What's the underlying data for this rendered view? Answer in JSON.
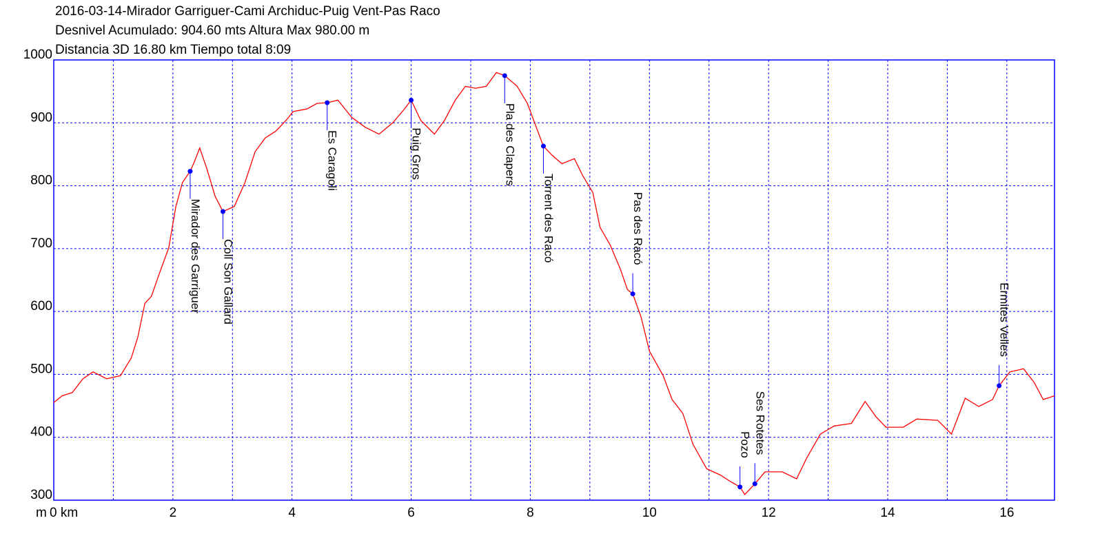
{
  "chart_data": {
    "type": "line",
    "title": "2016-03-14-Mirador Garriguer-Cami Archiduc-Puig Vent-Pas Raco",
    "subtitle": [
      "Desnivel Acumulado: 904.60 mts  Altura Max 980.00 m",
      "Distancia 3D 16.80 km  Tiempo total 8:09"
    ],
    "y_label": "m",
    "xlim": [
      0,
      16.8
    ],
    "ylim": [
      300,
      1000
    ],
    "xticks": [
      {
        "value": 0,
        "label": "0 km"
      },
      2,
      4,
      6,
      8,
      10,
      12,
      14,
      16
    ],
    "x_minor_grid": [
      1,
      3,
      5,
      7,
      9,
      11,
      13,
      15
    ],
    "yticks": [
      300,
      400,
      500,
      600,
      700,
      800,
      900,
      1000
    ],
    "grid": true,
    "axis_color": "#0000ff",
    "series": [
      {
        "color": "#ff0000",
        "x": [
          0,
          0.14,
          0.31,
          0.49,
          0.66,
          0.89,
          1.12,
          1.3,
          1.41,
          1.53,
          1.64,
          1.76,
          1.93,
          2.05,
          2.16,
          2.29,
          2.36,
          2.45,
          2.57,
          2.71,
          2.84,
          3.03,
          3.21,
          3.38,
          3.55,
          3.73,
          3.9,
          4.02,
          4.25,
          4.42,
          4.59,
          4.77,
          5.0,
          5.23,
          5.46,
          5.69,
          5.87,
          6.0,
          6.16,
          6.39,
          6.56,
          6.74,
          6.91,
          7.08,
          7.26,
          7.43,
          7.57,
          7.78,
          7.95,
          8.1,
          8.22,
          8.36,
          8.53,
          8.74,
          8.88,
          9.05,
          9.17,
          9.34,
          9.51,
          9.63,
          9.72,
          9.86,
          10.0,
          10.23,
          10.38,
          10.56,
          10.73,
          10.96,
          11.19,
          11.37,
          11.52,
          11.6,
          11.77,
          11.94,
          12.23,
          12.47,
          12.64,
          12.87,
          13.1,
          13.39,
          13.62,
          13.8,
          13.97,
          14.26,
          14.49,
          14.84,
          15.07,
          15.3,
          15.53,
          15.76,
          15.87,
          16.05,
          16.28,
          16.46,
          16.61,
          16.8
        ],
        "values": [
          455,
          466,
          471,
          493,
          504,
          493,
          498,
          526,
          559,
          613,
          624,
          657,
          701,
          767,
          805,
          823,
          838,
          860,
          827,
          783,
          759,
          767,
          805,
          854,
          876,
          887,
          904,
          918,
          922,
          931,
          932,
          936,
          909,
          893,
          882,
          900,
          920,
          936,
          904,
          882,
          904,
          936,
          958,
          955,
          958,
          980,
          975,
          958,
          931,
          893,
          863,
          849,
          835,
          843,
          816,
          789,
          734,
          706,
          668,
          635,
          628,
          591,
          537,
          498,
          460,
          438,
          389,
          350,
          340,
          329,
          321,
          309,
          326,
          345,
          345,
          334,
          367,
          405,
          418,
          422,
          457,
          433,
          416,
          416,
          429,
          427,
          405,
          462,
          449,
          460,
          482,
          504,
          509,
          487,
          460,
          466
        ]
      }
    ],
    "waypoint_color": "#0000ff",
    "waypoints": [
      {
        "name": "Mirador des Garriguer",
        "x": 2.29,
        "y": 823,
        "label_side": "below"
      },
      {
        "name": "Coll Son Gallard",
        "x": 2.84,
        "y": 759,
        "label_side": "below"
      },
      {
        "name": "Es Caragoli",
        "x": 4.59,
        "y": 932,
        "label_side": "below"
      },
      {
        "name": "Puig Gros",
        "x": 6.0,
        "y": 936,
        "label_side": "below"
      },
      {
        "name": "Pla des Clapers",
        "x": 7.57,
        "y": 975,
        "label_side": "below"
      },
      {
        "name": "Torrent des Racó",
        "x": 8.22,
        "y": 863,
        "label_side": "below"
      },
      {
        "name": "Pas des Racó",
        "x": 9.72,
        "y": 628,
        "label_side": "above"
      },
      {
        "name": "Pozo",
        "x": 11.52,
        "y": 321,
        "label_side": "above"
      },
      {
        "name": "Ses Rotetes",
        "x": 11.77,
        "y": 326,
        "label_side": "above"
      },
      {
        "name": "Ermites Velles",
        "x": 15.87,
        "y": 482,
        "label_side": "above"
      }
    ]
  }
}
